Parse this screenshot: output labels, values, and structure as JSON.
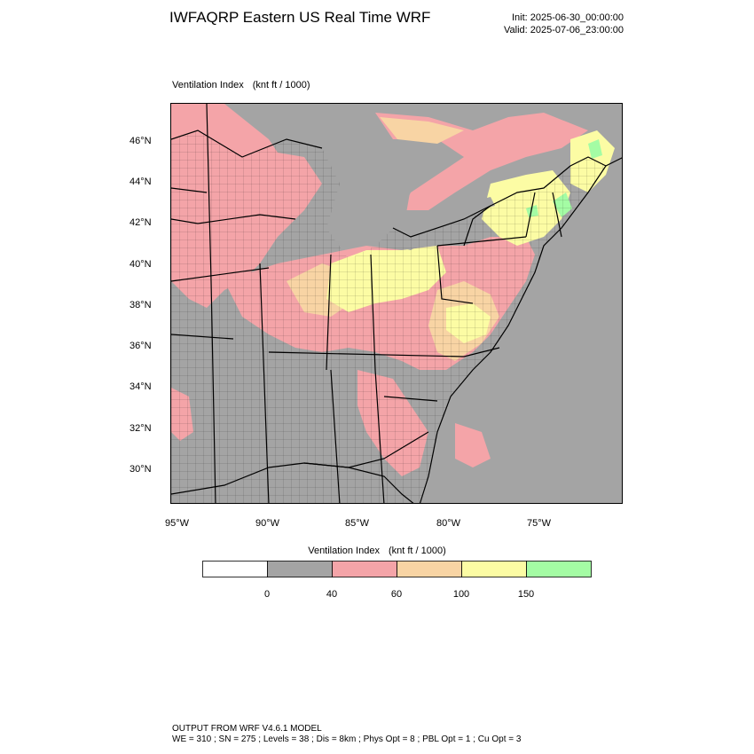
{
  "header": {
    "title": "IWFAQRP Eastern US Real Time WRF",
    "init": "Init: 2025-06-30_00:00:00",
    "valid": "Valid: 2025-07-06_23:00:00"
  },
  "map": {
    "field_name": "Ventilation Index",
    "units": "(knt ft / 1000)",
    "lat_labels": [
      "46°N",
      "44°N",
      "42°N",
      "40°N",
      "38°N",
      "36°N",
      "34°N",
      "32°N",
      "30°N"
    ],
    "lon_labels": [
      "95°W",
      "90°W",
      "85°W",
      "80°W",
      "75°W"
    ],
    "colors": {
      "ocean": "#a4a4a4",
      "class_0_40": "#a4a4a4",
      "class_40_60": "#f4a4a8",
      "class_60_100": "#f8d4a4",
      "class_100_150": "#fcfca4",
      "class_150_plus": "#a4fca4",
      "lines": "#000000"
    }
  },
  "colorbar": {
    "title": "Ventilation Index",
    "units": "(knt ft / 1000)",
    "colors": [
      "#ffffff",
      "#a4a4a4",
      "#f4a4a8",
      "#f8d4a4",
      "#fcfca4",
      "#a4fca4"
    ],
    "labels": [
      "0",
      "40",
      "60",
      "100",
      "150"
    ]
  },
  "footer": {
    "line1": "OUTPUT FROM WRF V4.6.1 MODEL",
    "line2": "WE = 310 ; SN = 275 ; Levels = 38 ; Dis = 8km ; Phys Opt = 8 ; PBL Opt = 1 ; Cu Opt = 3"
  }
}
